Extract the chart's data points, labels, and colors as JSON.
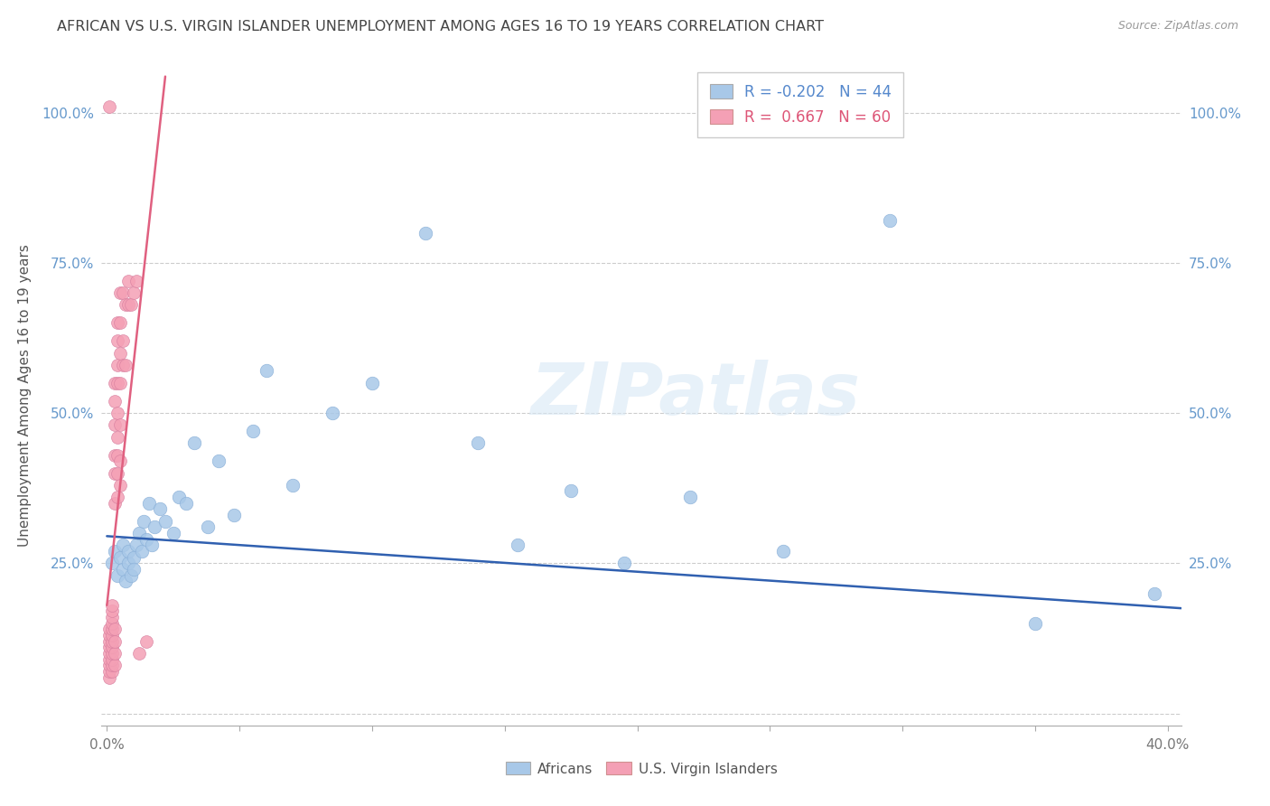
{
  "title": "AFRICAN VS U.S. VIRGIN ISLANDER UNEMPLOYMENT AMONG AGES 16 TO 19 YEARS CORRELATION CHART",
  "source": "Source: ZipAtlas.com",
  "ylabel": "Unemployment Among Ages 16 to 19 years",
  "xlim": [
    -0.002,
    0.405
  ],
  "ylim": [
    -0.02,
    1.08
  ],
  "x_ticks": [
    0.0,
    0.05,
    0.1,
    0.15,
    0.2,
    0.25,
    0.3,
    0.35,
    0.4
  ],
  "x_tick_labels": [
    "0.0%",
    "",
    "",
    "",
    "",
    "",
    "",
    "",
    "40.0%"
  ],
  "y_ticks": [
    0.0,
    0.25,
    0.5,
    0.75,
    1.0
  ],
  "y_tick_labels": [
    "",
    "25.0%",
    "50.0%",
    "75.0%",
    "100.0%"
  ],
  "legend_R_blue": "-0.202",
  "legend_N_blue": "44",
  "legend_R_pink": "0.667",
  "legend_N_pink": "60",
  "blue_scatter_color": "#a8c8e8",
  "pink_scatter_color": "#f4a0b5",
  "blue_line_color": "#3060b0",
  "pink_line_color": "#e06080",
  "background_color": "#ffffff",
  "grid_color": "#cccccc",
  "title_color": "#444444",
  "blue_line_x": [
    0.0,
    0.405
  ],
  "blue_line_y": [
    0.295,
    0.175
  ],
  "pink_line_x": [
    0.0,
    0.022
  ],
  "pink_line_y": [
    0.18,
    1.06
  ],
  "africans_x": [
    0.002,
    0.003,
    0.004,
    0.005,
    0.006,
    0.006,
    0.007,
    0.008,
    0.008,
    0.009,
    0.01,
    0.01,
    0.011,
    0.012,
    0.013,
    0.014,
    0.015,
    0.016,
    0.017,
    0.018,
    0.02,
    0.022,
    0.025,
    0.027,
    0.03,
    0.033,
    0.038,
    0.042,
    0.048,
    0.055,
    0.06,
    0.07,
    0.085,
    0.1,
    0.12,
    0.14,
    0.155,
    0.175,
    0.195,
    0.22,
    0.255,
    0.295,
    0.35,
    0.395
  ],
  "africans_y": [
    0.25,
    0.27,
    0.23,
    0.26,
    0.24,
    0.28,
    0.22,
    0.25,
    0.27,
    0.23,
    0.26,
    0.24,
    0.28,
    0.3,
    0.27,
    0.32,
    0.29,
    0.35,
    0.28,
    0.31,
    0.34,
    0.32,
    0.3,
    0.36,
    0.35,
    0.45,
    0.31,
    0.42,
    0.33,
    0.47,
    0.57,
    0.38,
    0.5,
    0.55,
    0.8,
    0.45,
    0.28,
    0.37,
    0.25,
    0.36,
    0.27,
    0.82,
    0.15,
    0.2
  ],
  "virgin_x": [
    0.001,
    0.001,
    0.001,
    0.001,
    0.001,
    0.001,
    0.001,
    0.001,
    0.001,
    0.001,
    0.002,
    0.002,
    0.002,
    0.002,
    0.002,
    0.002,
    0.002,
    0.002,
    0.002,
    0.002,
    0.002,
    0.002,
    0.003,
    0.003,
    0.003,
    0.003,
    0.003,
    0.003,
    0.003,
    0.003,
    0.003,
    0.003,
    0.004,
    0.004,
    0.004,
    0.004,
    0.004,
    0.004,
    0.004,
    0.004,
    0.004,
    0.005,
    0.005,
    0.005,
    0.005,
    0.005,
    0.005,
    0.005,
    0.006,
    0.006,
    0.006,
    0.007,
    0.007,
    0.008,
    0.008,
    0.009,
    0.01,
    0.011,
    0.012,
    0.015
  ],
  "virgin_y": [
    0.06,
    0.07,
    0.08,
    0.09,
    0.1,
    0.11,
    0.12,
    0.13,
    0.14,
    1.01,
    0.07,
    0.08,
    0.09,
    0.1,
    0.11,
    0.12,
    0.13,
    0.14,
    0.15,
    0.16,
    0.17,
    0.18,
    0.08,
    0.1,
    0.12,
    0.14,
    0.35,
    0.4,
    0.43,
    0.48,
    0.52,
    0.55,
    0.36,
    0.4,
    0.43,
    0.46,
    0.5,
    0.55,
    0.58,
    0.62,
    0.65,
    0.38,
    0.42,
    0.48,
    0.55,
    0.6,
    0.65,
    0.7,
    0.58,
    0.62,
    0.7,
    0.58,
    0.68,
    0.68,
    0.72,
    0.68,
    0.7,
    0.72,
    0.1,
    0.12
  ]
}
